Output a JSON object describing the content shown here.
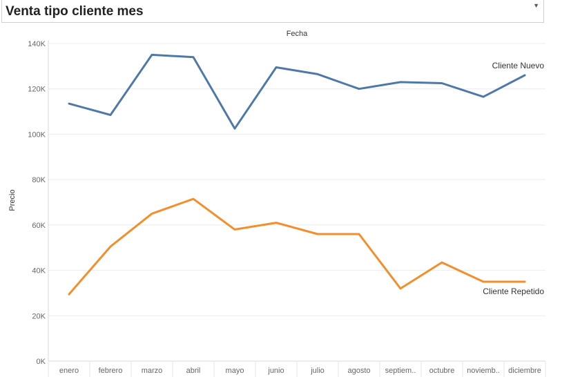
{
  "header": {
    "title": "Venta tipo cliente mes",
    "dropdown_icon": "chevron-down-icon"
  },
  "chart_data": {
    "type": "line",
    "title": "",
    "xlabel": "Fecha",
    "ylabel": "Precio",
    "categories": [
      "enero",
      "febrero",
      "marzo",
      "abril",
      "mayo",
      "junio",
      "julio",
      "agosto",
      "septiem..",
      "octubre",
      "noviemb..",
      "diciembre"
    ],
    "yticks": [
      "0K",
      "20K",
      "40K",
      "60K",
      "80K",
      "100K",
      "120K",
      "140K"
    ],
    "ylim": [
      0,
      142000
    ],
    "grid": true,
    "legend": "none (series labeled at line ends)",
    "series": [
      {
        "name": "Cliente Nuevo",
        "color": "#4e79a7",
        "values": [
          113500,
          108500,
          135000,
          134000,
          102500,
          129500,
          126500,
          120000,
          123000,
          122500,
          116500,
          126000
        ]
      },
      {
        "name": "Cliente Repetido",
        "color": "#f28e2b",
        "values": [
          29500,
          50500,
          65000,
          71500,
          58000,
          61000,
          56000,
          56000,
          32000,
          43500,
          35000,
          35000
        ]
      }
    ]
  }
}
